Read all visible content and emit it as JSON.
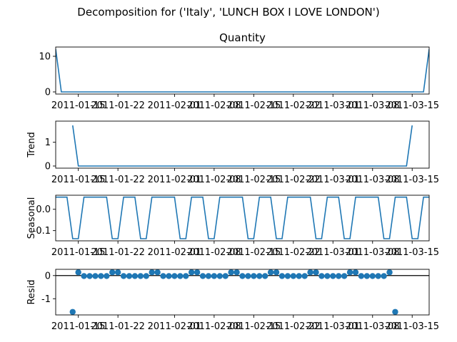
{
  "figure": {
    "suptitle": "Decomposition for ('Italy', 'LUNCH BOX I LOVE LONDON')"
  },
  "chart_data": [
    {
      "type": "line",
      "panel": "observed",
      "title": "Quantity",
      "ylabel": "",
      "ylim": [
        -0.6,
        12.6
      ],
      "yticks": [
        0,
        10
      ],
      "x_start": "2011-01-11",
      "x_end": "2011-03-18",
      "xticks": [
        "2011-01-15",
        "2011-01-22",
        "2011-02-01",
        "2011-02-08",
        "2011-02-15",
        "2011-02-22",
        "2011-03-01",
        "2011-03-08",
        "2011-03-15"
      ],
      "color": "#1f77b4",
      "series": [
        {
          "x": [
            "2011-01-11",
            "2011-01-12",
            "2011-03-17",
            "2011-03-18"
          ],
          "values": [
            12,
            0,
            0,
            12
          ]
        }
      ]
    },
    {
      "type": "line",
      "panel": "trend",
      "title": "",
      "ylabel": "Trend",
      "ylim": [
        -0.09,
        1.89
      ],
      "yticks": [
        0,
        1
      ],
      "x_start": "2011-01-11",
      "x_end": "2011-03-18",
      "xticks": [
        "2011-01-15",
        "2011-01-22",
        "2011-02-01",
        "2011-02-08",
        "2011-02-15",
        "2011-02-22",
        "2011-03-01",
        "2011-03-08",
        "2011-03-15"
      ],
      "color": "#1f77b4",
      "series": [
        {
          "x": [
            "2011-01-14",
            "2011-01-15",
            "2011-03-14",
            "2011-03-15"
          ],
          "values": [
            1.71,
            0,
            0,
            1.71
          ]
        }
      ]
    },
    {
      "type": "line",
      "panel": "seasonal",
      "title": "",
      "ylabel": "Seasonal",
      "ylim": [
        -0.148,
        0.066
      ],
      "yticks": [
        0.0,
        -0.1
      ],
      "x_start": "2011-01-11",
      "x_end": "2011-03-18",
      "xticks": [
        "2011-01-15",
        "2011-01-22",
        "2011-02-01",
        "2011-02-08",
        "2011-02-15",
        "2011-02-22",
        "2011-03-01",
        "2011-03-08",
        "2011-03-15"
      ],
      "color": "#1f77b4",
      "series": [
        {
          "pattern": [
            0.057,
            0.057,
            0.057,
            -0.138,
            -0.138,
            0.057,
            0.057,
            0.057,
            0.057,
            0.057,
            -0.138,
            -0.138
          ],
          "note_units": "value per day, repeating"
        }
      ]
    },
    {
      "type": "scatter",
      "panel": "resid",
      "title": "",
      "ylabel": "Resid",
      "ylim": [
        -1.7,
        0.27
      ],
      "yticks": [
        0,
        -1
      ],
      "x_start": "2011-01-11",
      "x_end": "2011-03-18",
      "xticks": [
        "2011-01-15",
        "2011-01-22",
        "2011-02-01",
        "2011-02-08",
        "2011-02-15",
        "2011-02-22",
        "2011-03-01",
        "2011-03-08",
        "2011-03-15"
      ],
      "color": "#1f77b4",
      "hline": 0,
      "series": [
        {
          "points": [
            [
              "2011-01-14",
              -1.57
            ],
            [
              "2011-01-15",
              0.14
            ],
            [
              "2011-01-16",
              -0.02
            ],
            [
              "2011-01-17",
              -0.02
            ],
            [
              "2011-01-18",
              -0.02
            ],
            [
              "2011-01-19",
              -0.02
            ],
            [
              "2011-01-20",
              -0.02
            ],
            [
              "2011-01-21",
              0.14
            ],
            [
              "2011-01-22",
              0.14
            ],
            [
              "2011-01-23",
              -0.02
            ],
            [
              "2011-01-24",
              -0.02
            ],
            [
              "2011-01-25",
              -0.02
            ],
            [
              "2011-01-26",
              -0.02
            ],
            [
              "2011-01-27",
              -0.02
            ],
            [
              "2011-01-28",
              0.14
            ],
            [
              "2011-01-29",
              0.14
            ],
            [
              "2011-01-30",
              -0.02
            ],
            [
              "2011-01-31",
              -0.02
            ],
            [
              "2011-02-01",
              -0.02
            ],
            [
              "2011-02-02",
              -0.02
            ],
            [
              "2011-02-03",
              -0.02
            ],
            [
              "2011-02-04",
              0.14
            ],
            [
              "2011-02-05",
              0.14
            ],
            [
              "2011-02-06",
              -0.02
            ],
            [
              "2011-02-07",
              -0.02
            ],
            [
              "2011-02-08",
              -0.02
            ],
            [
              "2011-02-09",
              -0.02
            ],
            [
              "2011-02-10",
              -0.02
            ],
            [
              "2011-02-11",
              0.14
            ],
            [
              "2011-02-12",
              0.14
            ],
            [
              "2011-02-13",
              -0.02
            ],
            [
              "2011-02-14",
              -0.02
            ],
            [
              "2011-02-15",
              -0.02
            ],
            [
              "2011-02-16",
              -0.02
            ],
            [
              "2011-02-17",
              -0.02
            ],
            [
              "2011-02-18",
              0.14
            ],
            [
              "2011-02-19",
              0.14
            ],
            [
              "2011-02-20",
              -0.02
            ],
            [
              "2011-02-21",
              -0.02
            ],
            [
              "2011-02-22",
              -0.02
            ],
            [
              "2011-02-23",
              -0.02
            ],
            [
              "2011-02-24",
              -0.02
            ],
            [
              "2011-02-25",
              0.14
            ],
            [
              "2011-02-26",
              0.14
            ],
            [
              "2011-02-27",
              -0.02
            ],
            [
              "2011-02-28",
              -0.02
            ],
            [
              "2011-03-01",
              -0.02
            ],
            [
              "2011-03-02",
              -0.02
            ],
            [
              "2011-03-03",
              -0.02
            ],
            [
              "2011-03-04",
              0.14
            ],
            [
              "2011-03-05",
              0.14
            ],
            [
              "2011-03-06",
              -0.02
            ],
            [
              "2011-03-07",
              -0.02
            ],
            [
              "2011-03-08",
              -0.02
            ],
            [
              "2011-03-09",
              -0.02
            ],
            [
              "2011-03-10",
              -0.02
            ],
            [
              "2011-03-11",
              0.14
            ],
            [
              "2011-03-12",
              -1.57
            ]
          ]
        }
      ]
    }
  ]
}
